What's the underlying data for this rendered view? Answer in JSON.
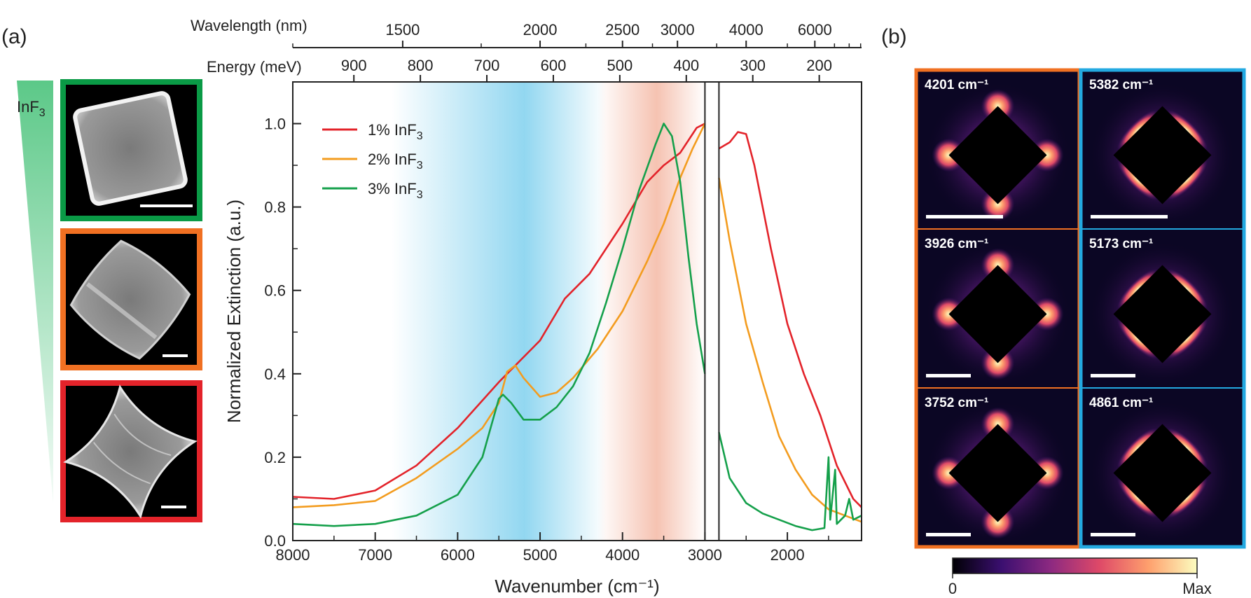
{
  "panels": {
    "a": "(a)",
    "b": "(b)"
  },
  "side": {
    "label": "InF3",
    "label_main": "InF",
    "label_sub": "3",
    "frames": [
      {
        "name": "green-frame",
        "color": "#0a9a46"
      },
      {
        "name": "orange-frame",
        "color": "#f07022"
      },
      {
        "name": "red-frame",
        "color": "#e3232a"
      }
    ]
  },
  "chart_data": {
    "type": "line",
    "xlabel": "Wavenumber (cm⁻¹)",
    "ylabel": "Normalized Extinction (a.u.)",
    "xlim": [
      8000,
      1100
    ],
    "ylim": [
      0,
      1.1
    ],
    "x_reversed": true,
    "x_ticks": [
      8000,
      7000,
      6000,
      5000,
      4000,
      3000,
      2000
    ],
    "y_ticks": [
      0.0,
      0.2,
      0.4,
      0.6,
      0.8,
      1.0
    ],
    "y_tick_labels": [
      "0.0",
      "0.2",
      "0.4",
      "0.6",
      "0.8",
      "1.0"
    ],
    "gap_lines": [
      3000,
      2830
    ],
    "top_axes": {
      "wavelength_title": "Wavelength (nm)",
      "wavelength_ticks": [
        {
          "label": "1500",
          "value": 1500
        },
        {
          "label": "2000",
          "value": 2000
        },
        {
          "label": "2500",
          "value": 2500
        },
        {
          "label": "3000",
          "value": 3000
        },
        {
          "label": "4000",
          "value": 4000
        },
        {
          "label": "6000",
          "value": 6000
        }
      ],
      "energy_title": "Energy (meV)",
      "energy_ticks": [
        {
          "label": "900",
          "value": 900
        },
        {
          "label": "800",
          "value": 800
        },
        {
          "label": "700",
          "value": 700
        },
        {
          "label": "600",
          "value": 600
        },
        {
          "label": "500",
          "value": 500
        },
        {
          "label": "400",
          "value": 400
        },
        {
          "label": "300",
          "value": 300
        },
        {
          "label": "200",
          "value": 200
        }
      ]
    },
    "shaded_bands": [
      {
        "color": "#7fd0ee",
        "from": 6800,
        "to": 4200,
        "center": 5200
      },
      {
        "color": "#f4b8a4",
        "from": 4300,
        "to": 3000,
        "center": 3700
      }
    ],
    "series": [
      {
        "name": "1% InF3",
        "name_main": "1% InF",
        "name_sub": "3",
        "color": "#e3232a",
        "points": [
          [
            8000,
            0.105
          ],
          [
            7500,
            0.1
          ],
          [
            7000,
            0.12
          ],
          [
            6500,
            0.18
          ],
          [
            6000,
            0.27
          ],
          [
            5500,
            0.38
          ],
          [
            5000,
            0.48
          ],
          [
            4700,
            0.58
          ],
          [
            4400,
            0.64
          ],
          [
            4000,
            0.76
          ],
          [
            3700,
            0.86
          ],
          [
            3500,
            0.9
          ],
          [
            3300,
            0.93
          ],
          [
            3100,
            0.99
          ],
          [
            3000,
            1.0
          ],
          null,
          [
            2830,
            0.94
          ],
          [
            2700,
            0.955
          ],
          [
            2600,
            0.98
          ],
          [
            2500,
            0.975
          ],
          [
            2400,
            0.9
          ],
          [
            2200,
            0.7
          ],
          [
            2000,
            0.52
          ],
          [
            1800,
            0.4
          ],
          [
            1600,
            0.3
          ],
          [
            1400,
            0.18
          ],
          [
            1200,
            0.1
          ],
          [
            1100,
            0.08
          ]
        ]
      },
      {
        "name": "2% InF3",
        "name_main": "2% InF",
        "name_sub": "3",
        "color": "#f39c1f",
        "points": [
          [
            8000,
            0.08
          ],
          [
            7500,
            0.085
          ],
          [
            7000,
            0.095
          ],
          [
            6500,
            0.15
          ],
          [
            6000,
            0.22
          ],
          [
            5700,
            0.27
          ],
          [
            5500,
            0.33
          ],
          [
            5400,
            0.405
          ],
          [
            5300,
            0.42
          ],
          [
            5200,
            0.39
          ],
          [
            5000,
            0.345
          ],
          [
            4800,
            0.355
          ],
          [
            4600,
            0.39
          ],
          [
            4300,
            0.46
          ],
          [
            4000,
            0.55
          ],
          [
            3700,
            0.67
          ],
          [
            3500,
            0.76
          ],
          [
            3300,
            0.87
          ],
          [
            3150,
            0.94
          ],
          [
            3000,
            1.0
          ],
          null,
          [
            2830,
            0.87
          ],
          [
            2700,
            0.72
          ],
          [
            2500,
            0.52
          ],
          [
            2300,
            0.38
          ],
          [
            2100,
            0.25
          ],
          [
            1900,
            0.17
          ],
          [
            1700,
            0.11
          ],
          [
            1500,
            0.075
          ],
          [
            1300,
            0.06
          ],
          [
            1100,
            0.045
          ]
        ]
      },
      {
        "name": "3% InF3",
        "name_main": "3% InF",
        "name_sub": "3",
        "color": "#15a04b",
        "points": [
          [
            8000,
            0.04
          ],
          [
            7500,
            0.035
          ],
          [
            7000,
            0.04
          ],
          [
            6500,
            0.06
          ],
          [
            6000,
            0.11
          ],
          [
            5700,
            0.2
          ],
          [
            5600,
            0.27
          ],
          [
            5500,
            0.34
          ],
          [
            5450,
            0.35
          ],
          [
            5350,
            0.33
          ],
          [
            5200,
            0.29
          ],
          [
            5000,
            0.29
          ],
          [
            4800,
            0.32
          ],
          [
            4600,
            0.37
          ],
          [
            4400,
            0.45
          ],
          [
            4200,
            0.57
          ],
          [
            4000,
            0.7
          ],
          [
            3800,
            0.84
          ],
          [
            3600,
            0.95
          ],
          [
            3500,
            1.0
          ],
          [
            3400,
            0.97
          ],
          [
            3300,
            0.86
          ],
          [
            3200,
            0.68
          ],
          [
            3100,
            0.52
          ],
          [
            3000,
            0.4
          ],
          null,
          [
            2830,
            0.26
          ],
          [
            2700,
            0.15
          ],
          [
            2500,
            0.09
          ],
          [
            2300,
            0.065
          ],
          [
            2100,
            0.05
          ],
          [
            1900,
            0.035
          ],
          [
            1700,
            0.025
          ],
          [
            1550,
            0.03
          ],
          [
            1500,
            0.2
          ],
          [
            1480,
            0.05
          ],
          [
            1420,
            0.17
          ],
          [
            1400,
            0.04
          ],
          [
            1300,
            0.06
          ],
          [
            1250,
            0.1
          ],
          [
            1200,
            0.05
          ],
          [
            1100,
            0.06
          ]
        ]
      }
    ]
  },
  "maps": {
    "items": [
      {
        "label": "4201 cm⁻¹",
        "pattern": "corners",
        "frame": "#f07022"
      },
      {
        "label": "5382 cm⁻¹",
        "pattern": "edges",
        "frame": "#23a9e1"
      },
      {
        "label": "3926 cm⁻¹",
        "pattern": "corners",
        "frame": "#f07022"
      },
      {
        "label": "5173 cm⁻¹",
        "pattern": "edges",
        "frame": "#23a9e1"
      },
      {
        "label": "3752 cm⁻¹",
        "pattern": "corners",
        "frame": "#f07022"
      },
      {
        "label": "4861 cm⁻¹",
        "pattern": "edges",
        "frame": "#23a9e1"
      }
    ],
    "colorbar": {
      "min_label": "0",
      "max_label": "Max",
      "stops": [
        "#000004",
        "#3b0f70",
        "#8c2981",
        "#de4968",
        "#fe9f6d",
        "#fcfdbf"
      ]
    }
  }
}
